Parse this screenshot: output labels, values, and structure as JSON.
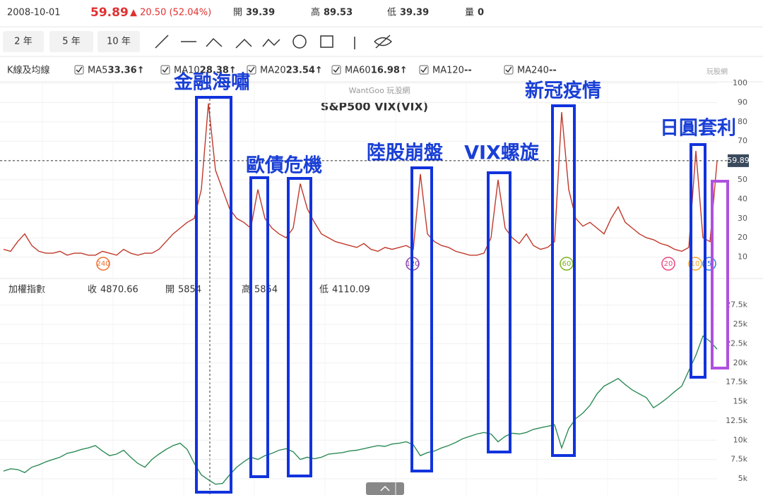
{
  "header": {
    "date": "2008-10-01",
    "price": "59.89",
    "change": "▲ 20.50 (52.04%)",
    "fields": [
      {
        "label": "開",
        "value": "39.39"
      },
      {
        "label": "高",
        "value": "89.53"
      },
      {
        "label": "低",
        "value": "39.39"
      },
      {
        "label": "量",
        "value": "0"
      }
    ]
  },
  "toolbar": {
    "ranges": [
      "2 年",
      "5 年",
      "10 年"
    ]
  },
  "ma_legend": {
    "title": "K線及均線",
    "items": [
      {
        "name": "MA5",
        "value": "33.36↑",
        "color": "#2a7de1"
      },
      {
        "name": "MA10",
        "value": "28.38↑",
        "color": "#f5a623"
      },
      {
        "name": "MA20",
        "value": "23.54↑",
        "color": "#e8457a"
      },
      {
        "name": "MA60",
        "value": "16.98↑",
        "color": "#7cb518"
      },
      {
        "name": "MA120",
        "value": "--",
        "color": "#8e44ad"
      },
      {
        "name": "MA240",
        "value": "--",
        "color": "#f07030"
      }
    ]
  },
  "logo": "玩股網",
  "vix_chart": {
    "type": "line",
    "watermark": "WantGoo 玩股網",
    "title": "S&P500 VIX(VIX)",
    "color": "#c0392b",
    "ylim": [
      0,
      100
    ],
    "yticks": [
      10,
      20,
      30,
      40,
      50,
      60,
      70,
      80,
      90,
      100
    ],
    "current": 59.89,
    "ma_markers": [
      "240",
      "120",
      "60",
      "20",
      "10",
      "5"
    ],
    "values": [
      14,
      13,
      18,
      22,
      16,
      13,
      12,
      12,
      13,
      11,
      12,
      12,
      11,
      11,
      13,
      12,
      11,
      14,
      12,
      11,
      12,
      12,
      14,
      18,
      22,
      25,
      28,
      30,
      45,
      89.53,
      55,
      45,
      35,
      30,
      28,
      25,
      45,
      30,
      25,
      22,
      20,
      25,
      48,
      35,
      28,
      22,
      20,
      18,
      17,
      16,
      15,
      17,
      14,
      13,
      15,
      14,
      15,
      16,
      14,
      53,
      22,
      18,
      16,
      15,
      13,
      12,
      11,
      11,
      12,
      20,
      50,
      25,
      20,
      17,
      22,
      16,
      14,
      15,
      18,
      85,
      45,
      30,
      26,
      28,
      25,
      22,
      30,
      36,
      28,
      25,
      22,
      20,
      19,
      17,
      16,
      14,
      13,
      15,
      65,
      20,
      18,
      59.89
    ]
  },
  "taiex_chart": {
    "type": "line",
    "name": "加權指數",
    "color": "#2e8b57",
    "fields": [
      {
        "label": "收",
        "value": "4870.66"
      },
      {
        "label": "開",
        "value": "5854"
      },
      {
        "label": "高",
        "value": "5854"
      },
      {
        "label": "低",
        "value": "4110.09"
      }
    ],
    "ylim": [
      2900,
      28200
    ],
    "yticks": [
      {
        "value": 5000,
        "label": "5k"
      },
      {
        "value": 7500,
        "label": "7.5k"
      },
      {
        "value": 10000,
        "label": "10k"
      },
      {
        "value": 12500,
        "label": "12.5k"
      },
      {
        "value": 15000,
        "label": "15k"
      },
      {
        "value": 17500,
        "label": "17.5k"
      },
      {
        "value": 20000,
        "label": "20k"
      },
      {
        "value": 22500,
        "label": "22.5k"
      },
      {
        "value": 25000,
        "label": "25k"
      },
      {
        "value": 27500,
        "label": "27.5k"
      }
    ],
    "values": [
      6000,
      6300,
      6200,
      5800,
      6500,
      6800,
      7200,
      7500,
      7800,
      8300,
      8500,
      8800,
      9000,
      9300,
      8600,
      8000,
      8200,
      8700,
      7800,
      7000,
      6500,
      7500,
      8200,
      8800,
      9300,
      9600,
      8800,
      7000,
      5500,
      4870.66,
      4300,
      4400,
      5500,
      6500,
      7200,
      7800,
      7500,
      8000,
      8300,
      8700,
      8900,
      8500,
      7500,
      7800,
      7600,
      7800,
      8200,
      8300,
      8400,
      8600,
      8700,
      8900,
      9100,
      9300,
      9200,
      9500,
      9600,
      9800,
      9400,
      8000,
      8400,
      8600,
      9000,
      9300,
      9700,
      10200,
      10500,
      10800,
      11000,
      10800,
      9800,
      10500,
      10900,
      10800,
      11000,
      11400,
      11600,
      11800,
      12000,
      9000,
      11500,
      12800,
      13500,
      14500,
      16000,
      17000,
      17500,
      18000,
      17200,
      16500,
      16000,
      15500,
      14200,
      14800,
      15500,
      16300,
      17000,
      19000,
      21000,
      23500,
      22800,
      21800
    ]
  },
  "annotations": [
    "金融海嘯",
    "歐債危機",
    "陸股崩盤",
    "VIX螺旋",
    "新冠疫情",
    "日圓套利"
  ]
}
